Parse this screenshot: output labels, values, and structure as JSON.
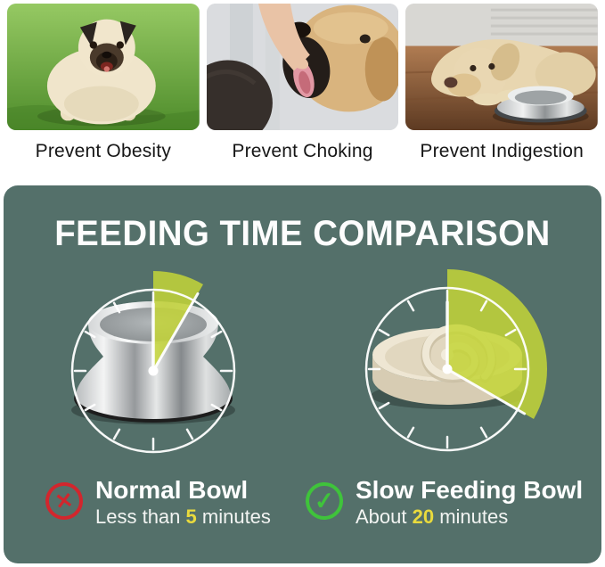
{
  "benefits": [
    {
      "caption": "Prevent Obesity",
      "photo": "obese-pug-on-grass"
    },
    {
      "caption": "Prevent Choking",
      "photo": "owner-helping-choking-dog"
    },
    {
      "caption": "Prevent Indigestion",
      "photo": "tired-dog-beside-steel-bowl"
    }
  ],
  "comparison": {
    "title": "FEEDING TIME COMPARISON",
    "colors": {
      "panel": "#54706a",
      "wedge": "#c4d537",
      "clock_lines": "#ffffff",
      "highlight": "#e9da3d",
      "cross": "#d2262d",
      "check": "#3fc33b"
    },
    "clocks": [
      {
        "name": "normal-bowl-clock",
        "minutes": 5,
        "wedge_degrees": 30
      },
      {
        "name": "slow-feeding-bowl-clock",
        "minutes": 20,
        "wedge_degrees": 120
      }
    ],
    "results": [
      {
        "verdict": "cross",
        "label": "Normal Bowl",
        "time_prefix": "Less than ",
        "time_value": "5",
        "time_suffix": " minutes"
      },
      {
        "verdict": "check",
        "label": "Slow Feeding Bowl",
        "time_prefix": "About ",
        "time_value": "20",
        "time_suffix": " minutes"
      }
    ]
  }
}
